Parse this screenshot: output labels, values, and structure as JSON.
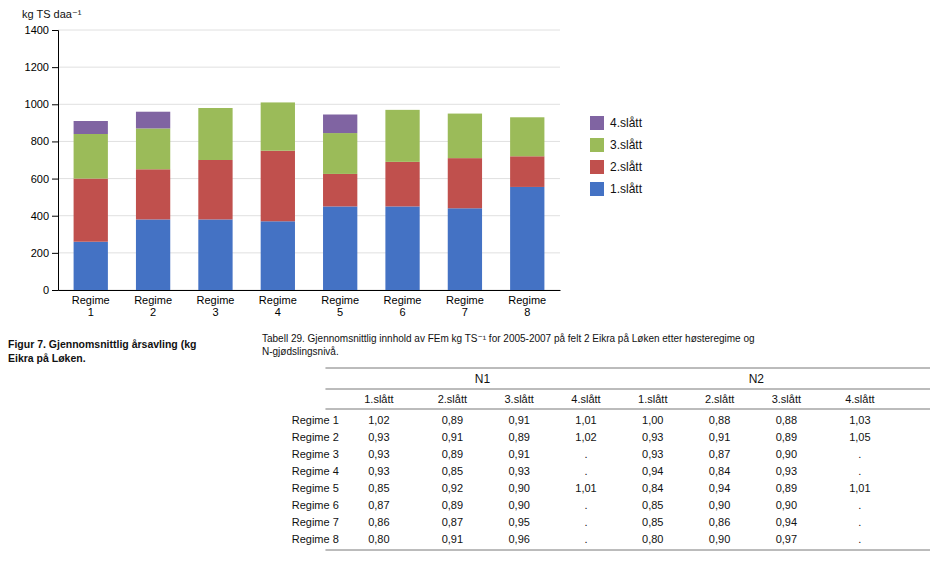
{
  "chart_data": {
    "type": "bar",
    "stacked": true,
    "y_label": "kg TS daa⁻¹",
    "categories": [
      "Regime\n1",
      "Regime\n2",
      "Regime\n3",
      "Regime\n4",
      "Regime\n5",
      "Regime\n6",
      "Regime\n7",
      "Regime\n8"
    ],
    "series": [
      {
        "name": "1.slått",
        "color": "#4472C4",
        "values": [
          260,
          380,
          380,
          370,
          450,
          450,
          440,
          555
        ]
      },
      {
        "name": "2.slått",
        "color": "#C0504D",
        "values": [
          340,
          270,
          320,
          380,
          175,
          240,
          270,
          165
        ]
      },
      {
        "name": "3.slått",
        "color": "#9BBB59",
        "values": [
          240,
          220,
          280,
          260,
          220,
          280,
          240,
          210
        ]
      },
      {
        "name": "4.slått",
        "color": "#8064A2",
        "values": [
          70,
          90,
          0,
          0,
          100,
          0,
          0,
          0
        ]
      }
    ],
    "ylim": [
      0,
      1400
    ],
    "yticks": [
      0,
      200,
      400,
      600,
      800,
      1000,
      1200,
      1400
    ],
    "grid": true,
    "legend": "right",
    "annotations": [
      "Figur 7. Gjennomsnittlig årsavling (kg",
      "Eikra på Løken."
    ],
    "table": {
      "caption": [
        "Tabell 29. Gjennomsnittlig innhold av FEm kg TS⁻¹ for 2005-2007 på felt 2 Eikra på Løken etter høsteregime og",
        "N-gjødslingsnivå."
      ],
      "groups": [
        "N1",
        "N2"
      ],
      "columns": [
        "1.slått",
        "2.slått",
        "3.slått",
        "4.slått",
        "1.slått",
        "2.slått",
        "3.slått",
        "4.slått"
      ],
      "rows": [
        [
          "Regime 1",
          "1,02",
          "0,89",
          "0,91",
          "1,01",
          "1,00",
          "0,88",
          "0,88",
          "1,03"
        ],
        [
          "Regime 2",
          "0,93",
          "0,91",
          "0,89",
          "1,02",
          "0,93",
          "0,91",
          "0,89",
          "1,05"
        ],
        [
          "Regime 3",
          "0,93",
          "0,89",
          "0,91",
          ".",
          "0,93",
          "0,87",
          "0,90",
          "."
        ],
        [
          "Regime 4",
          "0,93",
          "0,85",
          "0,93",
          ".",
          "0,94",
          "0,84",
          "0,93",
          "."
        ],
        [
          "Regime 5",
          "0,85",
          "0,92",
          "0,90",
          "1,01",
          "0,84",
          "0,94",
          "0,89",
          "1,01"
        ],
        [
          "Regime 6",
          "0,87",
          "0,89",
          "0,90",
          ".",
          "0,85",
          "0,90",
          "0,90",
          "."
        ],
        [
          "Regime 7",
          "0,86",
          "0,87",
          "0,95",
          ".",
          "0,85",
          "0,86",
          "0,94",
          "."
        ],
        [
          "Regime 8",
          "0,80",
          "0,91",
          "0,96",
          ".",
          "0,80",
          "0,90",
          "0,97",
          "."
        ]
      ]
    }
  }
}
